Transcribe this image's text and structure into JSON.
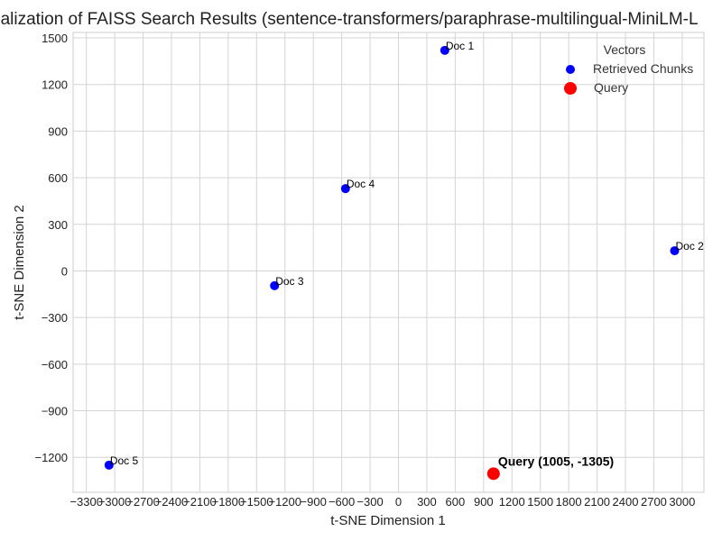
{
  "chart_data": {
    "type": "scatter",
    "title": "ualization of FAISS Search Results (sentence-transformers/paraphrase-multilingual-MiniLM-L",
    "xlabel": "t-SNE Dimension 1",
    "ylabel": "t-SNE Dimension 2",
    "xlim": [
      -3440,
      3230
    ],
    "ylim": [
      -1425,
      1535
    ],
    "xticks": [
      -3300,
      -3000,
      -2700,
      -2400,
      -2100,
      -1800,
      -1500,
      -1200,
      -900,
      -600,
      -300,
      0,
      300,
      600,
      900,
      1200,
      1500,
      1800,
      2100,
      2400,
      2700,
      3000
    ],
    "xtick_labels": [
      "−3300",
      "−3000",
      "−2700",
      "−2400",
      "−2100",
      "−1800",
      "−1500",
      "−1200",
      "−900",
      "−600",
      "−300",
      "0",
      "300",
      "600",
      "900",
      "1200",
      "1500",
      "1800",
      "2100",
      "2400",
      "2700",
      "3000"
    ],
    "yticks": [
      1500,
      1200,
      900,
      600,
      300,
      0,
      -300,
      -600,
      -900,
      -1200
    ],
    "ytick_labels": [
      "1500",
      "1200",
      "900",
      "600",
      "300",
      "0",
      "−300",
      "−600",
      "−900",
      "−1200"
    ],
    "grid": true,
    "legend": {
      "title": "Vectors",
      "placement": "top-right",
      "entries": [
        "Retrieved Chunks",
        "Query"
      ]
    },
    "series": [
      {
        "name": "Retrieved Chunks",
        "color": "#0000ff",
        "points": [
          {
            "label": "Doc 1",
            "x": 490,
            "y": 1420
          },
          {
            "label": "Doc 2",
            "x": 2920,
            "y": 130
          },
          {
            "label": "Doc 3",
            "x": -1310,
            "y": -95
          },
          {
            "label": "Doc 4",
            "x": -560,
            "y": 530
          },
          {
            "label": "Doc 5",
            "x": -3060,
            "y": -1250
          }
        ]
      },
      {
        "name": "Query",
        "color": "#ff0000",
        "points": [
          {
            "label": "Query (1005, -1305)",
            "x": 1005,
            "y": -1305
          }
        ]
      }
    ]
  }
}
